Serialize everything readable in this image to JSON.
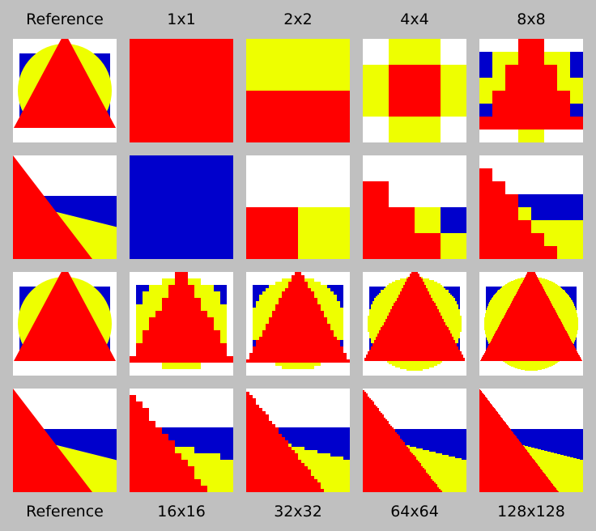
{
  "top_labels": [
    "Reference",
    "1x1",
    "2x2",
    "4x4",
    "8x8"
  ],
  "bottom_labels": [
    "Reference",
    "16x16",
    "32x32",
    "64x64",
    "128x128"
  ],
  "colors": {
    "background": "#c0c0c0",
    "white": "#ffffff",
    "blue": "#0000cc",
    "yellow": "#eeff00",
    "red": "#ff0000"
  }
}
